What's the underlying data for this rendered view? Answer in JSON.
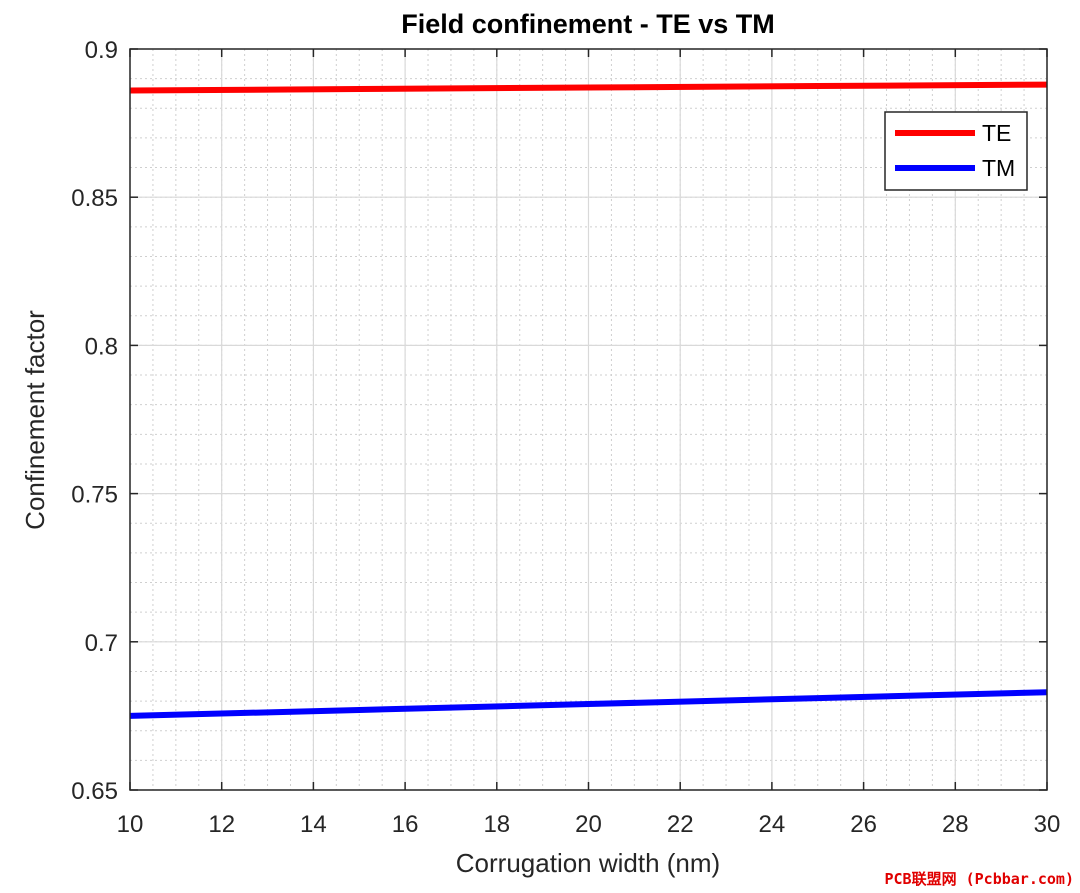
{
  "chart_data": {
    "type": "line",
    "title": "Field confinement - TE vs TM",
    "xlabel": "Corrugation width (nm)",
    "ylabel": "Confinement factor",
    "xlim": [
      10,
      30
    ],
    "ylim": [
      0.65,
      0.9
    ],
    "xticks": [
      10,
      12,
      14,
      16,
      18,
      20,
      22,
      24,
      26,
      28,
      30
    ],
    "yticks": [
      0.65,
      0.7,
      0.75,
      0.8,
      0.85,
      0.9
    ],
    "xtick_labels": [
      "10",
      "12",
      "14",
      "16",
      "18",
      "20",
      "22",
      "24",
      "26",
      "28",
      "30"
    ],
    "ytick_labels": [
      "0.65",
      "0.7",
      "0.75",
      "0.8",
      "0.85",
      "0.9"
    ],
    "grid": true,
    "minor_grid": true,
    "legend_location": "top-right",
    "series": [
      {
        "name": "TE",
        "color": "#ff0000",
        "x": [
          10,
          15,
          20,
          25,
          30
        ],
        "values": [
          0.886,
          0.8865,
          0.887,
          0.8875,
          0.888
        ]
      },
      {
        "name": "TM",
        "color": "#0000ff",
        "x": [
          10,
          15,
          20,
          25,
          30
        ],
        "values": [
          0.675,
          0.677,
          0.679,
          0.681,
          0.683
        ]
      }
    ]
  },
  "watermark": "PCB联盟网 (Pcbbar.com)"
}
